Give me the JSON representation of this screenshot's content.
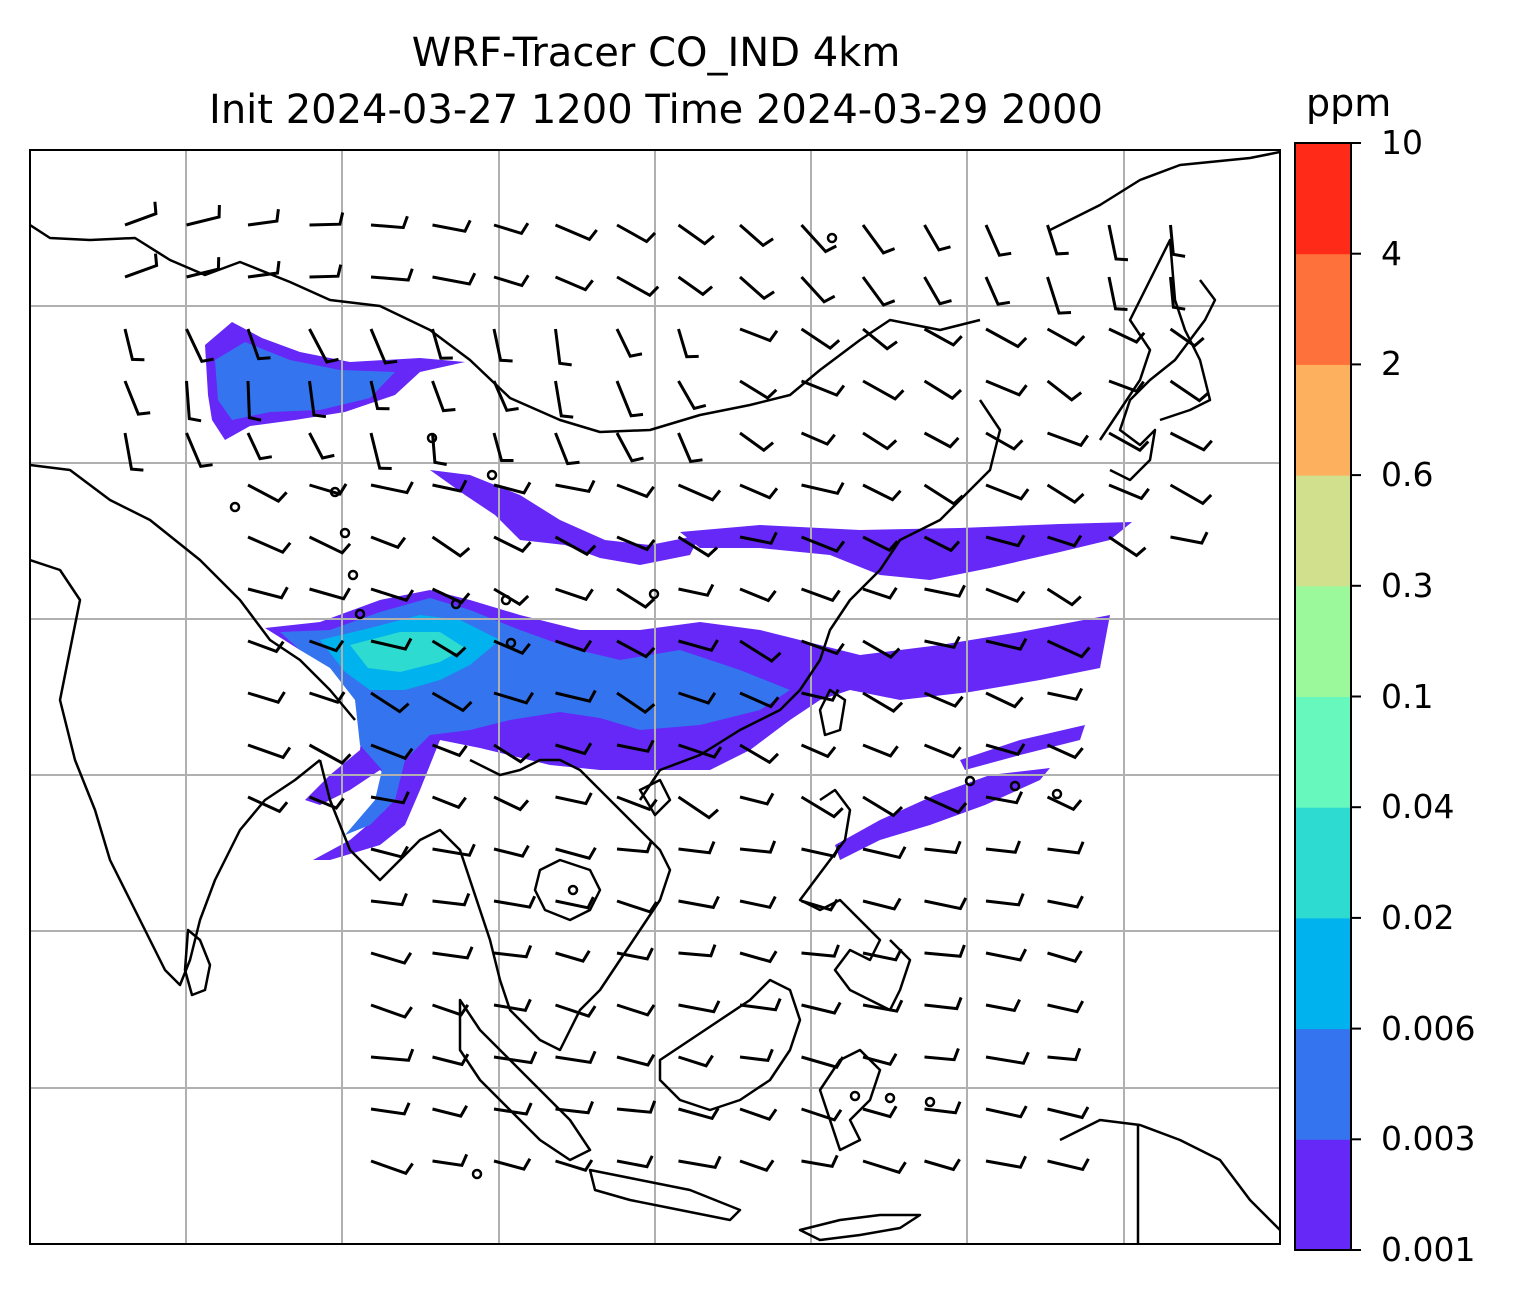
{
  "title": {
    "line1": "WRF-Tracer CO_IND 4km",
    "line2": "Init 2024-03-27 1200 Time 2024-03-29 2000"
  },
  "colorbar": {
    "unit": "ppm",
    "ticks": [
      "0.001",
      "0.003",
      "0.006",
      "0.02",
      "0.04",
      "0.1",
      "0.3",
      "0.6",
      "2",
      "4",
      "10"
    ],
    "colors": [
      "#6528f7",
      "#3574ef",
      "#00b2ee",
      "#2edbd1",
      "#66f8bd",
      "#9bf89b",
      "#d0e08c",
      "#fdb05e",
      "#ff713a",
      "#ff2b18"
    ]
  },
  "map": {
    "gridlines": true,
    "coastline_color": "#000000",
    "gridline_color": "#b0b0b0"
  }
}
